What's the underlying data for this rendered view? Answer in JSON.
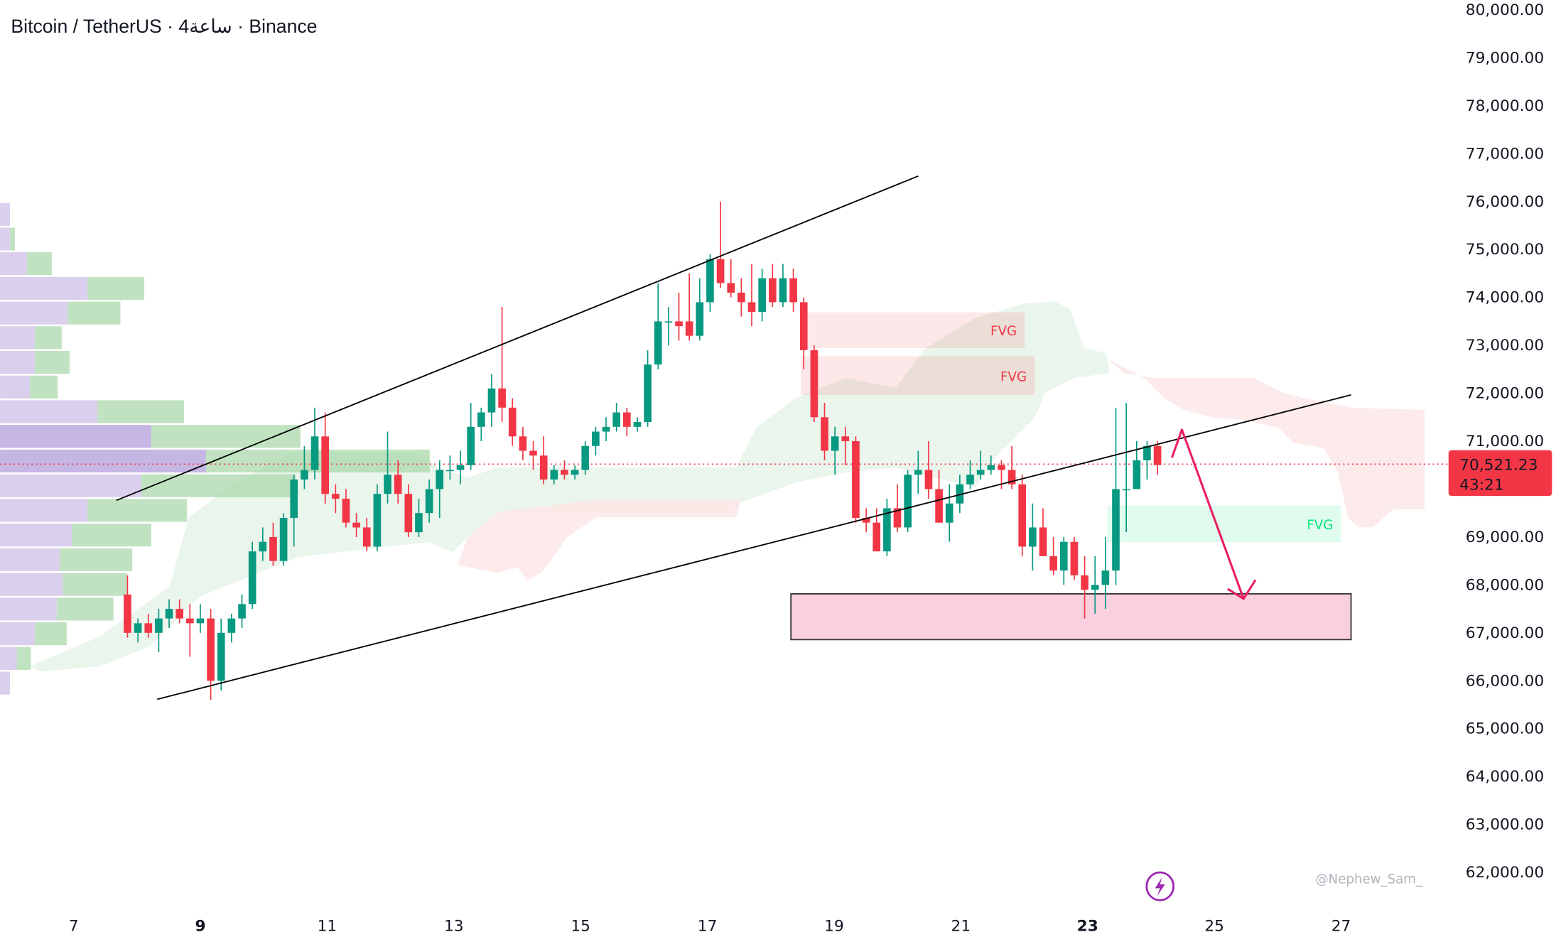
{
  "header": {
    "title": "Bitcoin / TetherUS · 4ساعة · Binance"
  },
  "watermark": "@Nephew_Sam_",
  "icons": {
    "bottom": "lightning-icon"
  },
  "colors": {
    "up": "#089981",
    "down": "#f23645",
    "arrow": "#e91e63",
    "fvg_red": "#f23645",
    "fvg_green": "#00e676"
  },
  "last_price": {
    "value": 70521.23,
    "label": "70,521.23",
    "countdown": "43:21"
  },
  "fvg_labels": [
    "FVG",
    "FVG",
    "FVG"
  ],
  "chart_data": {
    "type": "candlestick",
    "title": "Bitcoin / TetherUS · 4ساعة · Binance",
    "ylim": [
      61500,
      80000
    ],
    "xlim_days": [
      6.8,
      28.3
    ],
    "first_candle_day": 7.85,
    "candle_hours": 4,
    "y_ticks": [
      "80,000.00",
      "79,000.00",
      "78,000.00",
      "77,000.00",
      "76,000.00",
      "75,000.00",
      "74,000.00",
      "73,000.00",
      "72,000.00",
      "71,000.00",
      "69,000.00",
      "68,000.00",
      "67,000.00",
      "66,000.00",
      "65,000.00",
      "64,000.00",
      "63,000.00",
      "62,000.00"
    ],
    "y_tick_values": [
      80000,
      79000,
      78000,
      77000,
      76000,
      75000,
      74000,
      73000,
      72000,
      71000,
      69000,
      68000,
      67000,
      66000,
      65000,
      64000,
      63000,
      62000
    ],
    "x_ticks": [
      {
        "label": "7",
        "day": 7
      },
      {
        "label": "9",
        "day": 9,
        "bold": true
      },
      {
        "label": "11",
        "day": 11
      },
      {
        "label": "13",
        "day": 13
      },
      {
        "label": "15",
        "day": 15
      },
      {
        "label": "17",
        "day": 17
      },
      {
        "label": "19",
        "day": 19
      },
      {
        "label": "21",
        "day": 21
      },
      {
        "label": "23",
        "day": 23,
        "bold": true
      },
      {
        "label": "25",
        "day": 25
      },
      {
        "label": "27",
        "day": 27
      }
    ],
    "ohlc": [
      [
        67800,
        68200,
        66900,
        67000
      ],
      [
        67000,
        67300,
        66800,
        67200
      ],
      [
        67200,
        67400,
        66900,
        67000
      ],
      [
        67000,
        67500,
        66600,
        67300
      ],
      [
        67300,
        67700,
        67100,
        67500
      ],
      [
        67500,
        67700,
        67200,
        67300
      ],
      [
        67300,
        67600,
        66500,
        67200
      ],
      [
        67200,
        67600,
        67000,
        67300
      ],
      [
        67300,
        67500,
        65600,
        66000
      ],
      [
        66000,
        67300,
        65800,
        67000
      ],
      [
        67000,
        67400,
        66800,
        67300
      ],
      [
        67300,
        67800,
        67100,
        67600
      ],
      [
        67600,
        68900,
        67500,
        68700
      ],
      [
        68700,
        69200,
        68500,
        68900
      ],
      [
        69000,
        69300,
        68400,
        68500
      ],
      [
        68500,
        69500,
        68400,
        69400
      ],
      [
        69400,
        70300,
        68800,
        70200
      ],
      [
        70200,
        70900,
        70000,
        70400
      ],
      [
        70400,
        71700,
        70200,
        71100
      ],
      [
        71100,
        71600,
        69700,
        69900
      ],
      [
        69900,
        70100,
        69500,
        69800
      ],
      [
        69800,
        70000,
        69200,
        69300
      ],
      [
        69300,
        69500,
        69000,
        69200
      ],
      [
        69200,
        69400,
        68700,
        68800
      ],
      [
        68800,
        70100,
        68700,
        69900
      ],
      [
        69900,
        71200,
        69700,
        70300
      ],
      [
        70300,
        70600,
        69700,
        69900
      ],
      [
        69900,
        70100,
        69000,
        69100
      ],
      [
        69100,
        69800,
        69000,
        69500
      ],
      [
        69500,
        70200,
        69300,
        70000
      ],
      [
        70000,
        70600,
        69400,
        70400
      ],
      [
        70400,
        70700,
        70200,
        70400
      ],
      [
        70400,
        70800,
        70100,
        70500
      ],
      [
        70500,
        71800,
        70400,
        71300
      ],
      [
        71300,
        71700,
        71000,
        71600
      ],
      [
        71600,
        72400,
        71300,
        72100
      ],
      [
        72100,
        73800,
        71400,
        71700
      ],
      [
        71700,
        71900,
        70900,
        71100
      ],
      [
        71100,
        71300,
        70600,
        70800
      ],
      [
        70800,
        71000,
        70400,
        70700
      ],
      [
        70700,
        71100,
        70100,
        70200
      ],
      [
        70200,
        70500,
        70100,
        70400
      ],
      [
        70400,
        70600,
        70200,
        70300
      ],
      [
        70300,
        70500,
        70200,
        70400
      ],
      [
        70400,
        71000,
        70300,
        70900
      ],
      [
        70900,
        71300,
        70700,
        71200
      ],
      [
        71200,
        71500,
        71000,
        71300
      ],
      [
        71300,
        71800,
        71200,
        71600
      ],
      [
        71600,
        71700,
        71100,
        71300
      ],
      [
        71300,
        71500,
        71200,
        71400
      ],
      [
        71400,
        72900,
        71300,
        72600
      ],
      [
        72600,
        74300,
        72500,
        73500
      ],
      [
        73500,
        73800,
        73000,
        73500
      ],
      [
        73500,
        74100,
        73100,
        73400
      ],
      [
        73500,
        74500,
        73100,
        73200
      ],
      [
        73200,
        74400,
        73100,
        73900
      ],
      [
        73900,
        74900,
        73700,
        74800
      ],
      [
        74800,
        76000,
        74200,
        74300
      ],
      [
        74300,
        74800,
        74000,
        74100
      ],
      [
        74100,
        74400,
        73600,
        73900
      ],
      [
        73900,
        74700,
        73400,
        73700
      ],
      [
        73700,
        74600,
        73500,
        74400
      ],
      [
        74400,
        74700,
        73800,
        73900
      ],
      [
        73900,
        74700,
        73800,
        74400
      ],
      [
        74400,
        74600,
        73700,
        73900
      ],
      [
        73900,
        74000,
        72500,
        72900
      ],
      [
        72900,
        73000,
        71400,
        71500
      ],
      [
        71500,
        71800,
        70600,
        70800
      ],
      [
        70800,
        71300,
        70300,
        71100
      ],
      [
        71100,
        71300,
        70500,
        71000
      ],
      [
        71000,
        71100,
        69300,
        69400
      ],
      [
        69400,
        69600,
        69100,
        69300
      ],
      [
        69300,
        69600,
        68700,
        68700
      ],
      [
        68700,
        69800,
        68600,
        69600
      ],
      [
        69600,
        70100,
        69100,
        69200
      ],
      [
        69200,
        70400,
        69100,
        70300
      ],
      [
        70300,
        70800,
        69900,
        70400
      ],
      [
        70400,
        71000,
        69800,
        70000
      ],
      [
        70000,
        70400,
        69300,
        69300
      ],
      [
        69300,
        70100,
        68900,
        69700
      ],
      [
        69700,
        70300,
        69500,
        70100
      ],
      [
        70100,
        70600,
        70000,
        70300
      ],
      [
        70300,
        70800,
        70200,
        70400
      ],
      [
        70400,
        70700,
        70300,
        70500
      ],
      [
        70500,
        70600,
        70000,
        70400
      ],
      [
        70400,
        70900,
        70000,
        70100
      ],
      [
        70100,
        70300,
        68600,
        68800
      ],
      [
        68800,
        69700,
        68300,
        69200
      ],
      [
        69200,
        69600,
        68600,
        68600
      ],
      [
        68600,
        69000,
        68200,
        68300
      ],
      [
        68300,
        69000,
        68000,
        68900
      ],
      [
        68900,
        69000,
        68100,
        68200
      ],
      [
        68200,
        68600,
        67300,
        67900
      ],
      [
        67900,
        68600,
        67400,
        68000
      ],
      [
        68000,
        69000,
        67500,
        68300
      ],
      [
        68300,
        71700,
        68000,
        70000
      ],
      [
        70000,
        71800,
        69100,
        70000
      ],
      [
        70000,
        71000,
        70000,
        70600
      ],
      [
        70600,
        71000,
        70200,
        70900
      ],
      [
        70900,
        71000,
        70300,
        70500
      ]
    ],
    "volume_profile": [
      [
        10,
        0
      ],
      [
        10,
        5
      ],
      [
        27,
        25
      ],
      [
        88,
        57
      ],
      [
        68,
        53
      ],
      [
        35,
        27
      ],
      [
        35,
        35
      ],
      [
        30,
        28
      ],
      [
        98,
        87
      ],
      [
        152,
        150
      ],
      [
        207,
        225
      ],
      [
        142,
        155
      ],
      [
        88,
        100
      ],
      [
        72,
        80
      ],
      [
        60,
        73
      ],
      [
        63,
        65
      ],
      [
        57,
        57
      ],
      [
        35,
        32
      ],
      [
        17,
        14
      ],
      [
        10,
        0
      ]
    ]
  }
}
